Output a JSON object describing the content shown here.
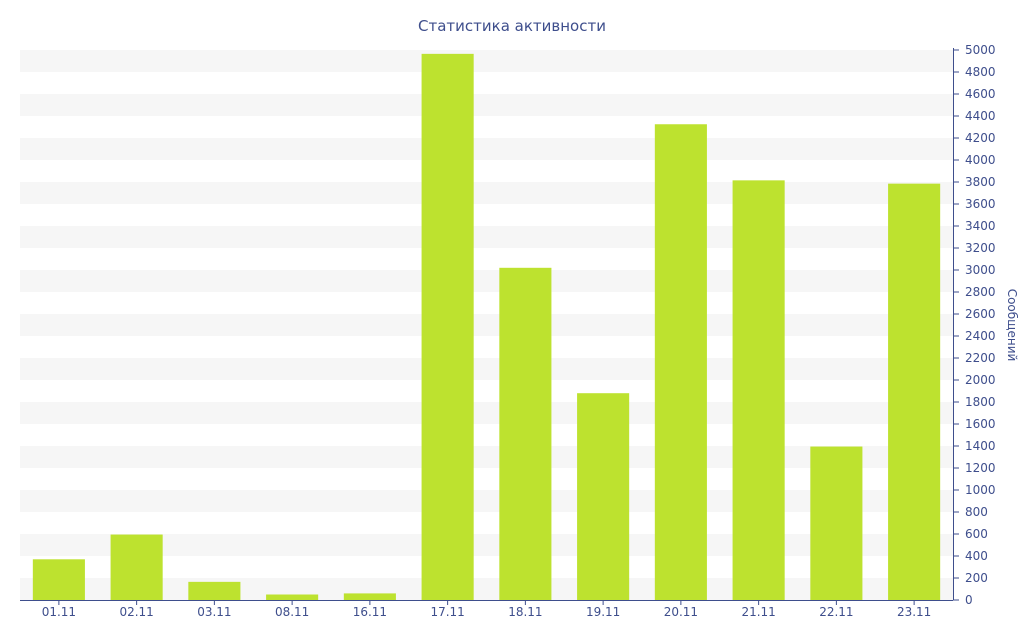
{
  "chart_data": {
    "type": "bar",
    "title": "Статистика активности",
    "xlabel": "",
    "ylabel": "Сообщений",
    "categories": [
      "01.11",
      "02.11",
      "03.11",
      "08.11",
      "16.11",
      "17.11",
      "18.11",
      "19.11",
      "20.11",
      "21.11",
      "22.11",
      "23.11"
    ],
    "series": [
      {
        "values": [
          370,
          595,
          165,
          50,
          60,
          4965,
          3020,
          1880,
          4325,
          3815,
          1395,
          3785
        ]
      }
    ],
    "ylim": [
      0,
      5000
    ],
    "y_ticks": [
      0,
      200,
      400,
      600,
      800,
      1000,
      1200,
      1400,
      1600,
      1800,
      2000,
      2200,
      2400,
      2600,
      2800,
      3000,
      3200,
      3400,
      3600,
      3800,
      4000,
      4200,
      4400,
      4600,
      4800,
      5000
    ],
    "y_axis_position": "right",
    "grid": "horizontal-bands",
    "legend": "none",
    "colors": {
      "bar": "#bde22f",
      "band": "#f6f6f6",
      "axis": "#3e4e8c",
      "text": "#3e4e8c"
    }
  }
}
